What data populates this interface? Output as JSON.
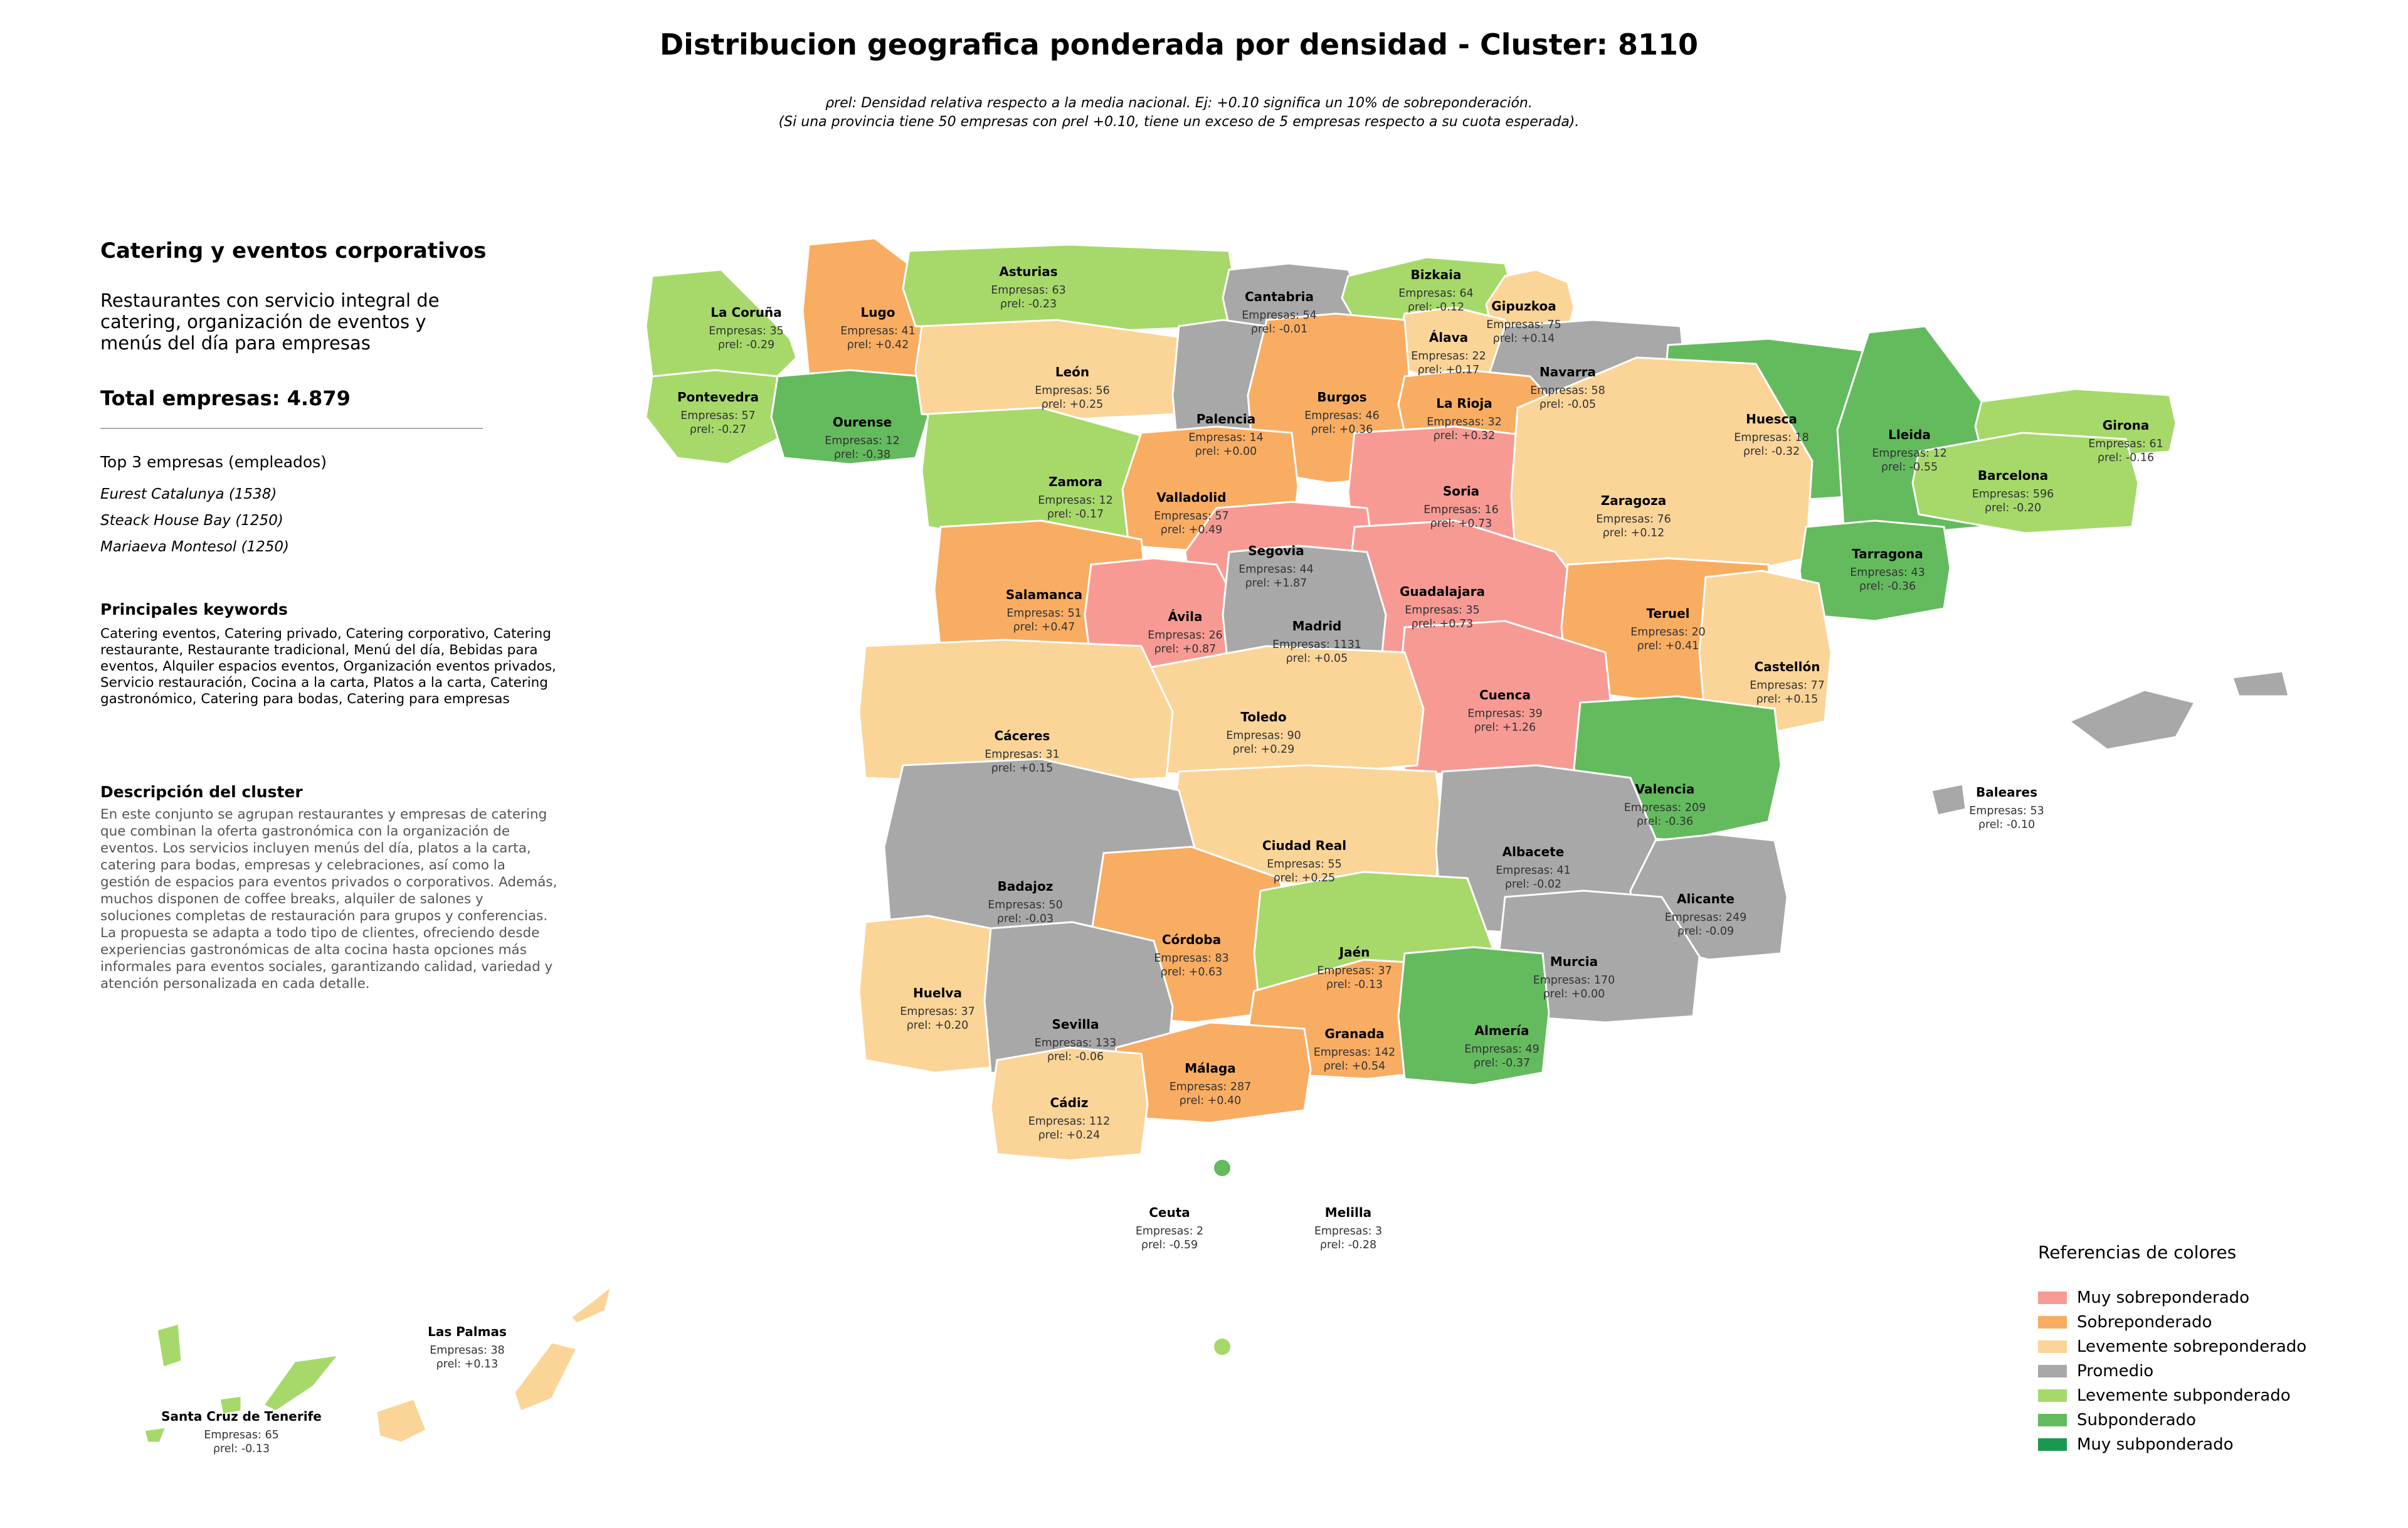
{
  "title": "Distribucion geografica ponderada por densidad - Cluster: 8110",
  "subtitle": {
    "line1": "ρrel: Densidad relativa respecto a la media nacional. Ej: +0.10 significa un 10% de sobreponderación.",
    "line2": "(Si una provincia tiene 50 empresas con ρrel +0.10, tiene un exceso de 5 empresas respecto a su cuota esperada)."
  },
  "sidebar": {
    "cluster_title": "Catering y eventos corporativos",
    "cluster_desc": "Restaurantes con servicio integral de catering, organización de eventos y menús del día para empresas",
    "total": "Total empresas: 4.879",
    "top_heading": "Top 3 empresas (empleados)",
    "top_companies": [
      "Eurest Catalunya (1538)",
      "Steack House Bay (1250)",
      "Mariaeva Montesol (1250)"
    ],
    "keywords_heading": "Principales keywords",
    "keywords": "Catering eventos, Catering privado, Catering corporativo, Catering restaurante, Restaurante tradicional, Menú del día, Bebidas para eventos, Alquiler espacios eventos, Organización eventos privados, Servicio restauración, Cocina a la carta, Platos a la carta, Catering gastronómico, Catering para bodas, Catering para empresas",
    "description_heading": "Descripción del cluster",
    "description": "En este conjunto se agrupan restaurantes y empresas de catering que combinan la oferta gastronómica con la organización de eventos. Los servicios incluyen menús del día, platos a la carta, catering para bodas, empresas y celebraciones, así como la gestión de espacios para eventos privados o corporativos. Además, muchos disponen de coffee breaks, alquiler de salones y soluciones completas de restauración para grupos y conferencias. La propuesta se adapta a todo tipo de clientes, ofreciendo desde experiencias gastronómicas de alta cocina hasta opciones más informales para eventos sociales, garantizando calidad, variedad y atención personalizada en cada detalle."
  },
  "label_prefix": "Empresas: ",
  "rho_symbol": "ρrel: ",
  "colors": {
    "muy_sobre": "#f79a94",
    "sobre": "#f8ad62",
    "lev_sobre": "#fbd497",
    "promedio": "#a8a8a8",
    "lev_sub": "#a6d96a",
    "sub": "#63bb5e",
    "muy_sub": "#1a9850"
  },
  "legend": {
    "title": "Referencias de colores",
    "items": [
      {
        "label": "Muy sobreponderado",
        "color": "#f79a94"
      },
      {
        "label": "Sobreponderado",
        "color": "#f8ad62"
      },
      {
        "label": "Levemente sobreponderado",
        "color": "#fbd497"
      },
      {
        "label": "Promedio",
        "color": "#a8a8a8"
      },
      {
        "label": "Levemente subponderado",
        "color": "#a6d96a"
      },
      {
        "label": "Subponderado",
        "color": "#63bb5e"
      },
      {
        "label": "Muy subponderado",
        "color": "#1a9850"
      }
    ]
  },
  "provinces": [
    {
      "name": "La Coruña",
      "empresas": "35",
      "rho": "-0.29",
      "category": "lev_sub"
    },
    {
      "name": "Lugo",
      "empresas": "41",
      "rho": "+0.42",
      "category": "sobre"
    },
    {
      "name": "Asturias",
      "empresas": "63",
      "rho": "-0.23",
      "category": "lev_sub"
    },
    {
      "name": "Cantabria",
      "empresas": "54",
      "rho": "-0.01",
      "category": "promedio"
    },
    {
      "name": "Bizkaia",
      "empresas": "64",
      "rho": "-0.12",
      "category": "lev_sub"
    },
    {
      "name": "Gipuzkoa",
      "empresas": "75",
      "rho": "+0.14",
      "category": "lev_sobre"
    },
    {
      "name": "Álava",
      "empresas": "22",
      "rho": "+0.17",
      "category": "lev_sobre"
    },
    {
      "name": "Navarra",
      "empresas": "58",
      "rho": "-0.05",
      "category": "promedio"
    },
    {
      "name": "Pontevedra",
      "empresas": "57",
      "rho": "-0.27",
      "category": "lev_sub"
    },
    {
      "name": "Ourense",
      "empresas": "12",
      "rho": "-0.38",
      "category": "sub"
    },
    {
      "name": "León",
      "empresas": "56",
      "rho": "+0.25",
      "category": "lev_sobre"
    },
    {
      "name": "Palencia",
      "empresas": "14",
      "rho": "+0.00",
      "category": "promedio"
    },
    {
      "name": "Burgos",
      "empresas": "46",
      "rho": "+0.36",
      "category": "sobre"
    },
    {
      "name": "La Rioja",
      "empresas": "32",
      "rho": "+0.32",
      "category": "sobre"
    },
    {
      "name": "Huesca",
      "empresas": "18",
      "rho": "-0.32",
      "category": "sub"
    },
    {
      "name": "Lleida",
      "empresas": "12",
      "rho": "-0.55",
      "category": "sub"
    },
    {
      "name": "Girona",
      "empresas": "61",
      "rho": "-0.16",
      "category": "lev_sub"
    },
    {
      "name": "Zamora",
      "empresas": "12",
      "rho": "-0.17",
      "category": "lev_sub"
    },
    {
      "name": "Valladolid",
      "empresas": "57",
      "rho": "+0.49",
      "category": "sobre"
    },
    {
      "name": "Soria",
      "empresas": "16",
      "rho": "+0.73",
      "category": "muy_sobre"
    },
    {
      "name": "Zaragoza",
      "empresas": "76",
      "rho": "+0.12",
      "category": "lev_sobre"
    },
    {
      "name": "Barcelona",
      "empresas": "596",
      "rho": "-0.20",
      "category": "lev_sub"
    },
    {
      "name": "Segovia",
      "empresas": "44",
      "rho": "+1.87",
      "category": "muy_sobre"
    },
    {
      "name": "Tarragona",
      "empresas": "43",
      "rho": "-0.36",
      "category": "sub"
    },
    {
      "name": "Salamanca",
      "empresas": "51",
      "rho": "+0.47",
      "category": "sobre"
    },
    {
      "name": "Guadalajara",
      "empresas": "35",
      "rho": "+0.73",
      "category": "muy_sobre"
    },
    {
      "name": "Ávila",
      "empresas": "26",
      "rho": "+0.87",
      "category": "muy_sobre"
    },
    {
      "name": "Madrid",
      "empresas": "1131",
      "rho": "+0.05",
      "category": "promedio"
    },
    {
      "name": "Teruel",
      "empresas": "20",
      "rho": "+0.41",
      "category": "sobre"
    },
    {
      "name": "Castellón",
      "empresas": "77",
      "rho": "+0.15",
      "category": "lev_sobre"
    },
    {
      "name": "Cuenca",
      "empresas": "39",
      "rho": "+1.26",
      "category": "muy_sobre"
    },
    {
      "name": "Toledo",
      "empresas": "90",
      "rho": "+0.29",
      "category": "lev_sobre"
    },
    {
      "name": "Cáceres",
      "empresas": "31",
      "rho": "+0.15",
      "category": "lev_sobre"
    },
    {
      "name": "Valencia",
      "empresas": "209",
      "rho": "-0.36",
      "category": "sub"
    },
    {
      "name": "Baleares",
      "empresas": "53",
      "rho": "-0.10",
      "category": "promedio"
    },
    {
      "name": "Ciudad Real",
      "empresas": "55",
      "rho": "+0.25",
      "category": "lev_sobre"
    },
    {
      "name": "Albacete",
      "empresas": "41",
      "rho": "-0.02",
      "category": "promedio"
    },
    {
      "name": "Badajoz",
      "empresas": "50",
      "rho": "-0.03",
      "category": "promedio"
    },
    {
      "name": "Alicante",
      "empresas": "249",
      "rho": "-0.09",
      "category": "promedio"
    },
    {
      "name": "Córdoba",
      "empresas": "83",
      "rho": "+0.63",
      "category": "sobre"
    },
    {
      "name": "Jaén",
      "empresas": "37",
      "rho": "-0.13",
      "category": "lev_sub"
    },
    {
      "name": "Murcia",
      "empresas": "170",
      "rho": "+0.00",
      "category": "promedio"
    },
    {
      "name": "Huelva",
      "empresas": "37",
      "rho": "+0.20",
      "category": "lev_sobre"
    },
    {
      "name": "Sevilla",
      "empresas": "133",
      "rho": "-0.06",
      "category": "promedio"
    },
    {
      "name": "Granada",
      "empresas": "142",
      "rho": "+0.54",
      "category": "sobre"
    },
    {
      "name": "Almería",
      "empresas": "49",
      "rho": "-0.37",
      "category": "sub"
    },
    {
      "name": "Málaga",
      "empresas": "287",
      "rho": "+0.40",
      "category": "sobre"
    },
    {
      "name": "Cádiz",
      "empresas": "112",
      "rho": "+0.24",
      "category": "lev_sobre"
    },
    {
      "name": "Ceuta",
      "empresas": "2",
      "rho": "-0.59",
      "category": "sub"
    },
    {
      "name": "Melilla",
      "empresas": "3",
      "rho": "-0.28",
      "category": "lev_sub"
    },
    {
      "name": "Las Palmas",
      "empresas": "38",
      "rho": "+0.13",
      "category": "lev_sobre"
    },
    {
      "name": "Santa Cruz de Tenerife",
      "empresas": "65",
      "rho": "-0.13",
      "category": "lev_sub"
    }
  ]
}
